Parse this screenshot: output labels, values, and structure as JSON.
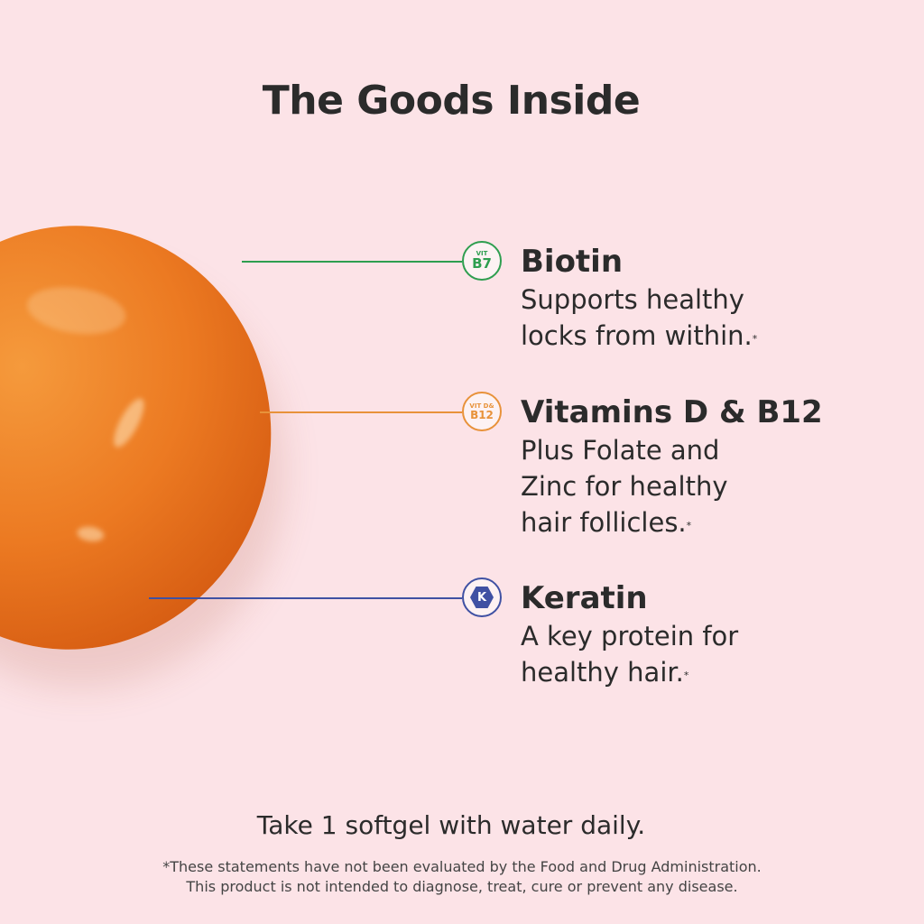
{
  "title": "The Goods Inside",
  "items": [
    {
      "name": "Biotin",
      "desc": "Supports healthy locks from within.",
      "note": "*",
      "badge_top": "VIT",
      "badge_main": "B7",
      "color": "#2e9e4f",
      "icon": "vitamin-b7-badge-icon"
    },
    {
      "name": "Vitamins D & B12",
      "desc_lines": [
        "Plus Folate and",
        "Zinc for healthy",
        "hair follicles."
      ],
      "note": "*",
      "badge_top": "VIT D&",
      "badge_main": "B12",
      "color": "#e8923a",
      "icon": "vitamin-d-b12-badge-icon"
    },
    {
      "name": "Keratin",
      "desc_lines": [
        "A key protein for",
        "healthy hair."
      ],
      "note": "*",
      "badge_main": "K",
      "color": "#3f51a3",
      "icon": "keratin-hexagon-icon"
    }
  ],
  "biotin_lines": [
    "Supports healthy",
    "locks from within."
  ],
  "directions": "Take 1 softgel with water daily.",
  "disclaimer": [
    "*These statements have not been evaluated by the Food and Drug Administration.",
    "This product is not intended to diagnose, treat, cure or prevent any disease."
  ]
}
